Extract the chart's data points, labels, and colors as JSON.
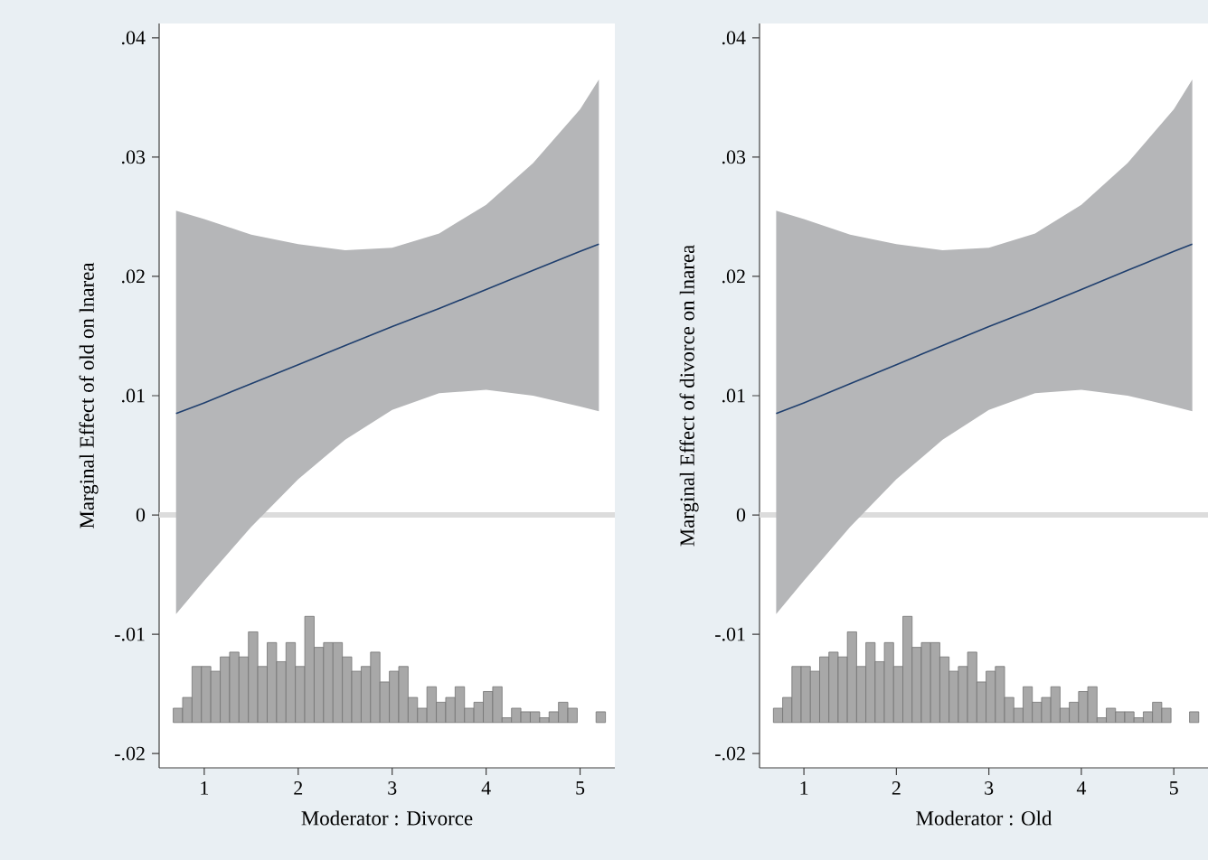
{
  "chart_data": [
    {
      "type": "line",
      "xlabel": "Moderator : Divorce",
      "ylabel": "Marginal Effect of old on lnarea",
      "xlim": [
        0.52,
        5.37
      ],
      "ylim": [
        -0.0212,
        0.0412
      ],
      "xticks": [
        1,
        2,
        3,
        4,
        5
      ],
      "yticks": [
        {
          "value": -0.02,
          "label": "-.02"
        },
        {
          "value": -0.01,
          "label": "-.01"
        },
        0,
        {
          "value": 0.01,
          "label": ".01"
        },
        {
          "value": 0.02,
          "label": ".02"
        },
        {
          "value": 0.03,
          "label": ".03"
        },
        {
          "value": 0.04,
          "label": ".04"
        }
      ],
      "grid": false,
      "ref_lines": [
        {
          "axis": "y",
          "value": 0,
          "color": "#dcdcdc"
        }
      ],
      "series": [
        {
          "color": "#1f3f6e",
          "x": [
            0.7,
            1,
            1.5,
            2,
            2.5,
            3,
            3.5,
            4,
            4.5,
            5,
            5.2
          ],
          "values": [
            0.0085,
            0.0094,
            0.011,
            0.0126,
            0.0142,
            0.0158,
            0.0173,
            0.0189,
            0.0205,
            0.0221,
            0.0227
          ],
          "upper": [
            0.0255,
            0.0248,
            0.0235,
            0.0227,
            0.0222,
            0.0224,
            0.0236,
            0.026,
            0.0295,
            0.034,
            0.0365
          ],
          "lower": [
            -0.0083,
            -0.0055,
            -0.001,
            0.003,
            0.0063,
            0.0088,
            0.0102,
            0.0105,
            0.01,
            0.0091,
            0.0087
          ]
        },
        {
          "type": "histogram",
          "color": "#a8a8a8",
          "base": [
            -0.0174,
            -0.0174,
            -0.0174,
            -0.0174,
            -0.0174,
            -0.0174,
            -0.0174,
            -0.0174,
            -0.0174,
            -0.0174,
            -0.0174,
            -0.0174,
            -0.0174,
            -0.0174,
            -0.0174,
            -0.0174,
            -0.0174,
            -0.0174,
            -0.0174,
            -0.0174,
            -0.0174,
            -0.0174,
            -0.0174,
            -0.0174,
            -0.0174,
            -0.0174,
            -0.0174,
            -0.0174,
            -0.0174,
            -0.0174,
            -0.0174,
            -0.0174,
            -0.0174,
            -0.0174,
            -0.0174,
            -0.0174,
            -0.0174,
            -0.0174,
            -0.0174,
            -0.0174,
            -0.0174,
            -0.0174,
            -0.0174,
            null,
            null,
            -0.0174
          ],
          "bins": [
            0.67,
            0.77,
            0.87,
            0.97,
            1.07,
            1.17,
            1.27,
            1.37,
            1.47,
            1.57,
            1.67,
            1.77,
            1.87,
            1.97,
            2.07,
            2.17,
            2.27,
            2.37,
            2.47,
            2.57,
            2.67,
            2.77,
            2.87,
            2.97,
            3.07,
            3.17,
            3.27,
            3.37,
            3.47,
            3.57,
            3.67,
            3.77,
            3.87,
            3.97,
            4.07,
            4.17,
            4.27,
            4.37,
            4.47,
            4.57,
            4.67,
            4.77,
            4.87,
            4.97,
            5.07,
            5.17,
            5.27
          ],
          "values": [
            0.0012,
            0.0021,
            0.0047,
            0.0047,
            0.0043,
            0.0055,
            0.0059,
            0.0055,
            0.0076,
            0.0047,
            0.0067,
            0.0051,
            0.0067,
            0.0047,
            0.0089,
            0.0063,
            0.0067,
            0.0067,
            0.0055,
            0.0043,
            0.0047,
            0.0059,
            0.0034,
            0.0043,
            0.0047,
            0.0021,
            0.0012,
            0.003,
            0.0017,
            0.0021,
            0.003,
            0.0012,
            0.0017,
            0.0026,
            0.003,
            0.0004,
            0.0012,
            0.0009,
            0.0009,
            0.0004,
            0.0009,
            0.0017,
            0.0012,
            null,
            null,
            0.0009
          ]
        }
      ]
    },
    {
      "type": "line",
      "xlabel": "Moderator : Old",
      "ylabel": "Marginal Effect of divorce on lnarea",
      "xlim": [
        0.52,
        5.37
      ],
      "ylim": [
        -0.0212,
        0.0412
      ],
      "xticks": [
        1,
        2,
        3,
        4,
        5
      ],
      "yticks": [
        {
          "value": -0.02,
          "label": "-.02"
        },
        {
          "value": -0.01,
          "label": "-.01"
        },
        0,
        {
          "value": 0.01,
          "label": ".01"
        },
        {
          "value": 0.02,
          "label": ".02"
        },
        {
          "value": 0.03,
          "label": ".03"
        },
        {
          "value": 0.04,
          "label": ".04"
        }
      ],
      "grid": false,
      "ref_lines": [
        {
          "axis": "y",
          "value": 0,
          "color": "#dcdcdc"
        }
      ],
      "series": [
        {
          "color": "#1f3f6e",
          "x": [
            0.7,
            1,
            1.5,
            2,
            2.5,
            3,
            3.5,
            4,
            4.5,
            5,
            5.2
          ],
          "values": [
            0.0085,
            0.0094,
            0.011,
            0.0126,
            0.0142,
            0.0158,
            0.0173,
            0.0189,
            0.0205,
            0.0221,
            0.0227
          ],
          "upper": [
            0.0255,
            0.0248,
            0.0235,
            0.0227,
            0.0222,
            0.0224,
            0.0236,
            0.026,
            0.0295,
            0.034,
            0.0365
          ],
          "lower": [
            -0.0083,
            -0.0055,
            -0.001,
            0.003,
            0.0063,
            0.0088,
            0.0102,
            0.0105,
            0.01,
            0.0091,
            0.0087
          ]
        },
        {
          "type": "histogram",
          "color": "#a8a8a8",
          "base": [
            -0.0174,
            -0.0174,
            -0.0174,
            -0.0174,
            -0.0174,
            -0.0174,
            -0.0174,
            -0.0174,
            -0.0174,
            -0.0174,
            -0.0174,
            -0.0174,
            -0.0174,
            -0.0174,
            -0.0174,
            -0.0174,
            -0.0174,
            -0.0174,
            -0.0174,
            -0.0174,
            -0.0174,
            -0.0174,
            -0.0174,
            -0.0174,
            -0.0174,
            -0.0174,
            -0.0174,
            -0.0174,
            -0.0174,
            -0.0174,
            -0.0174,
            -0.0174,
            -0.0174,
            -0.0174,
            -0.0174,
            -0.0174,
            -0.0174,
            -0.0174,
            -0.0174,
            -0.0174,
            -0.0174,
            -0.0174,
            -0.0174,
            null,
            null,
            -0.0174
          ],
          "bins": [
            0.67,
            0.77,
            0.87,
            0.97,
            1.07,
            1.17,
            1.27,
            1.37,
            1.47,
            1.57,
            1.67,
            1.77,
            1.87,
            1.97,
            2.07,
            2.17,
            2.27,
            2.37,
            2.47,
            2.57,
            2.67,
            2.77,
            2.87,
            2.97,
            3.07,
            3.17,
            3.27,
            3.37,
            3.47,
            3.57,
            3.67,
            3.77,
            3.87,
            3.97,
            4.07,
            4.17,
            4.27,
            4.37,
            4.47,
            4.57,
            4.67,
            4.77,
            4.87,
            4.97,
            5.07,
            5.17,
            5.27
          ],
          "values": [
            0.0012,
            0.0021,
            0.0047,
            0.0047,
            0.0043,
            0.0055,
            0.0059,
            0.0055,
            0.0076,
            0.0047,
            0.0067,
            0.0051,
            0.0067,
            0.0047,
            0.0089,
            0.0063,
            0.0067,
            0.0067,
            0.0055,
            0.0043,
            0.0047,
            0.0059,
            0.0034,
            0.0043,
            0.0047,
            0.0021,
            0.0012,
            0.003,
            0.0017,
            0.0021,
            0.003,
            0.0012,
            0.0017,
            0.0026,
            0.003,
            0.0004,
            0.0012,
            0.0009,
            0.0009,
            0.0004,
            0.0009,
            0.0017,
            0.0012,
            null,
            null,
            0.0009
          ]
        }
      ]
    }
  ]
}
